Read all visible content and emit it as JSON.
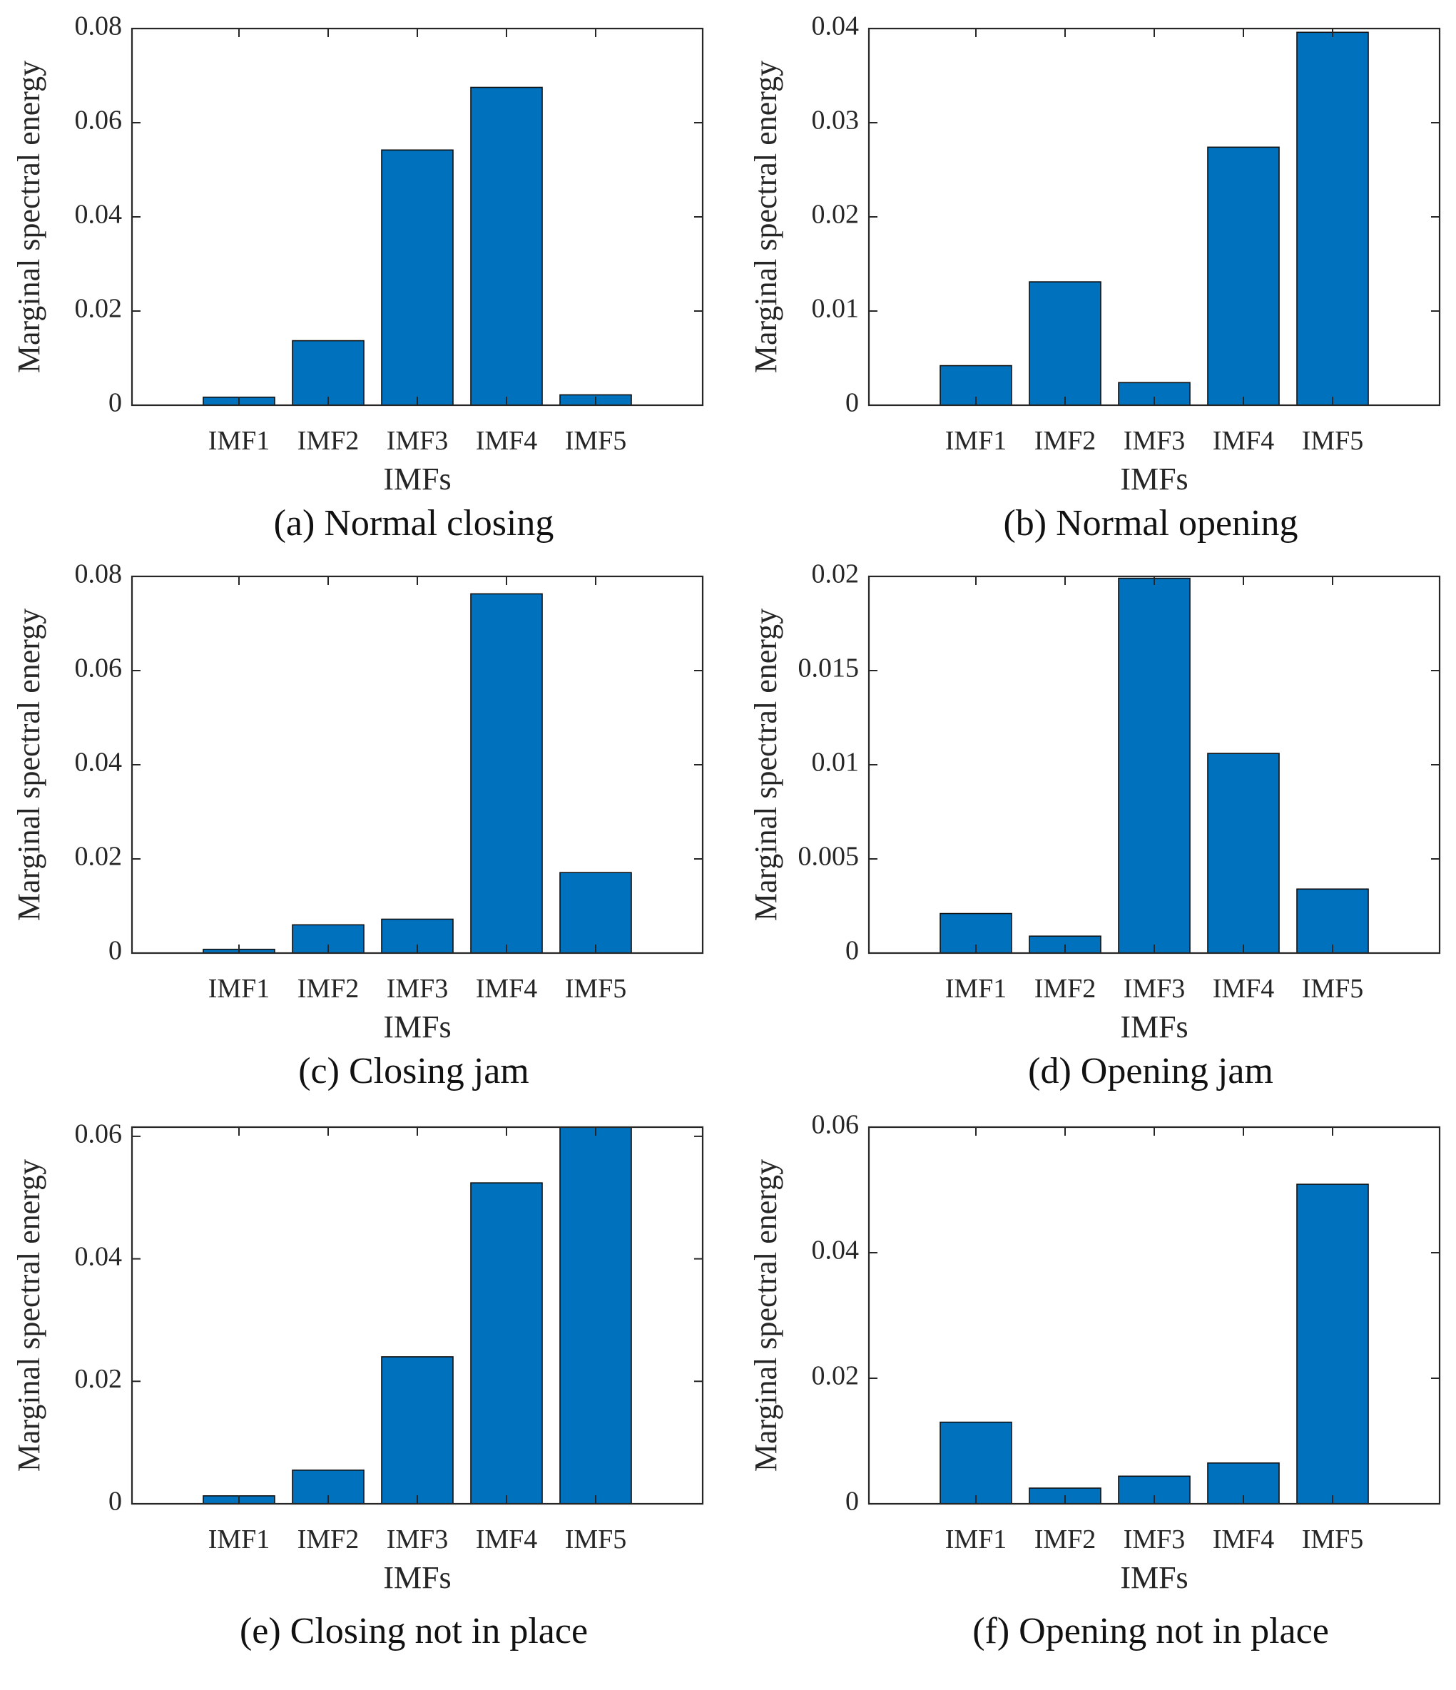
{
  "chart_data": [
    {
      "type": "bar",
      "id": "a",
      "caption": "(a) Normal closing",
      "categories": [
        "IMF1",
        "IMF2",
        "IMF3",
        "IMF4",
        "IMF5"
      ],
      "values": [
        0.0017,
        0.0137,
        0.0542,
        0.0675,
        0.0022
      ],
      "xlabel": "IMFs",
      "ylabel": "Marginal spectral energy",
      "ylim": [
        0,
        0.08
      ],
      "yticks": [
        0,
        0.02,
        0.04,
        0.06,
        0.08
      ],
      "ytick_labels": [
        "0",
        "0.02",
        "0.04",
        "0.06",
        "0.08"
      ],
      "bar_color": "#0072bd"
    },
    {
      "type": "bar",
      "id": "b",
      "caption": "(b) Normal opening",
      "categories": [
        "IMF1",
        "IMF2",
        "IMF3",
        "IMF4",
        "IMF5"
      ],
      "values": [
        0.0042,
        0.0131,
        0.0024,
        0.0274,
        0.0396
      ],
      "xlabel": "IMFs",
      "ylabel": "Marginal spectral energy",
      "ylim": [
        0,
        0.04
      ],
      "yticks": [
        0,
        0.01,
        0.02,
        0.03,
        0.04
      ],
      "ytick_labels": [
        "0",
        "0.01",
        "0.02",
        "0.03",
        "0.04"
      ],
      "bar_color": "#0072bd"
    },
    {
      "type": "bar",
      "id": "c",
      "caption": "(c) Closing jam",
      "categories": [
        "IMF1",
        "IMF2",
        "IMF3",
        "IMF4",
        "IMF5"
      ],
      "values": [
        0.0008,
        0.006,
        0.0072,
        0.0763,
        0.0171
      ],
      "xlabel": "IMFs",
      "ylabel": "Marginal spectral energy",
      "ylim": [
        0,
        0.08
      ],
      "yticks": [
        0,
        0.02,
        0.04,
        0.06,
        0.08
      ],
      "ytick_labels": [
        "0",
        "0.02",
        "0.04",
        "0.06",
        "0.08"
      ],
      "bar_color": "#0072bd"
    },
    {
      "type": "bar",
      "id": "d",
      "caption": "(d) Opening jam",
      "categories": [
        "IMF1",
        "IMF2",
        "IMF3",
        "IMF4",
        "IMF5"
      ],
      "values": [
        0.0021,
        0.0009,
        0.0199,
        0.0106,
        0.0034
      ],
      "xlabel": "IMFs",
      "ylabel": "Marginal spectral energy",
      "ylim": [
        0,
        0.02
      ],
      "yticks": [
        0,
        0.005,
        0.01,
        0.015,
        0.02
      ],
      "ytick_labels": [
        "0",
        "0.005",
        "0.01",
        "0.015",
        "0.02"
      ],
      "bar_color": "#0072bd"
    },
    {
      "type": "bar",
      "id": "e",
      "caption": "(e) Closing not in place",
      "categories": [
        "IMF1",
        "IMF2",
        "IMF3",
        "IMF4",
        "IMF5"
      ],
      "values": [
        0.0013,
        0.0055,
        0.024,
        0.0524,
        0.0615
      ],
      "xlabel": "IMFs",
      "ylabel": "Marginal spectral energy",
      "ylim": [
        0,
        0.0615
      ],
      "yticks": [
        0,
        0.02,
        0.04,
        0.06
      ],
      "ytick_labels": [
        "0",
        "0.02",
        "0.04",
        "0.06"
      ],
      "bar_color": "#0072bd"
    },
    {
      "type": "bar",
      "id": "f",
      "caption": "(f) Opening not in place",
      "categories": [
        "IMF1",
        "IMF2",
        "IMF3",
        "IMF4",
        "IMF5"
      ],
      "values": [
        0.013,
        0.0025,
        0.0044,
        0.0065,
        0.0509
      ],
      "xlabel": "IMFs",
      "ylabel": "Marginal spectral energy",
      "ylim": [
        0,
        0.06
      ],
      "yticks": [
        0,
        0.02,
        0.04,
        0.06
      ],
      "ytick_labels": [
        "0",
        "0.02",
        "0.04",
        "0.06"
      ],
      "bar_color": "#0072bd"
    }
  ]
}
